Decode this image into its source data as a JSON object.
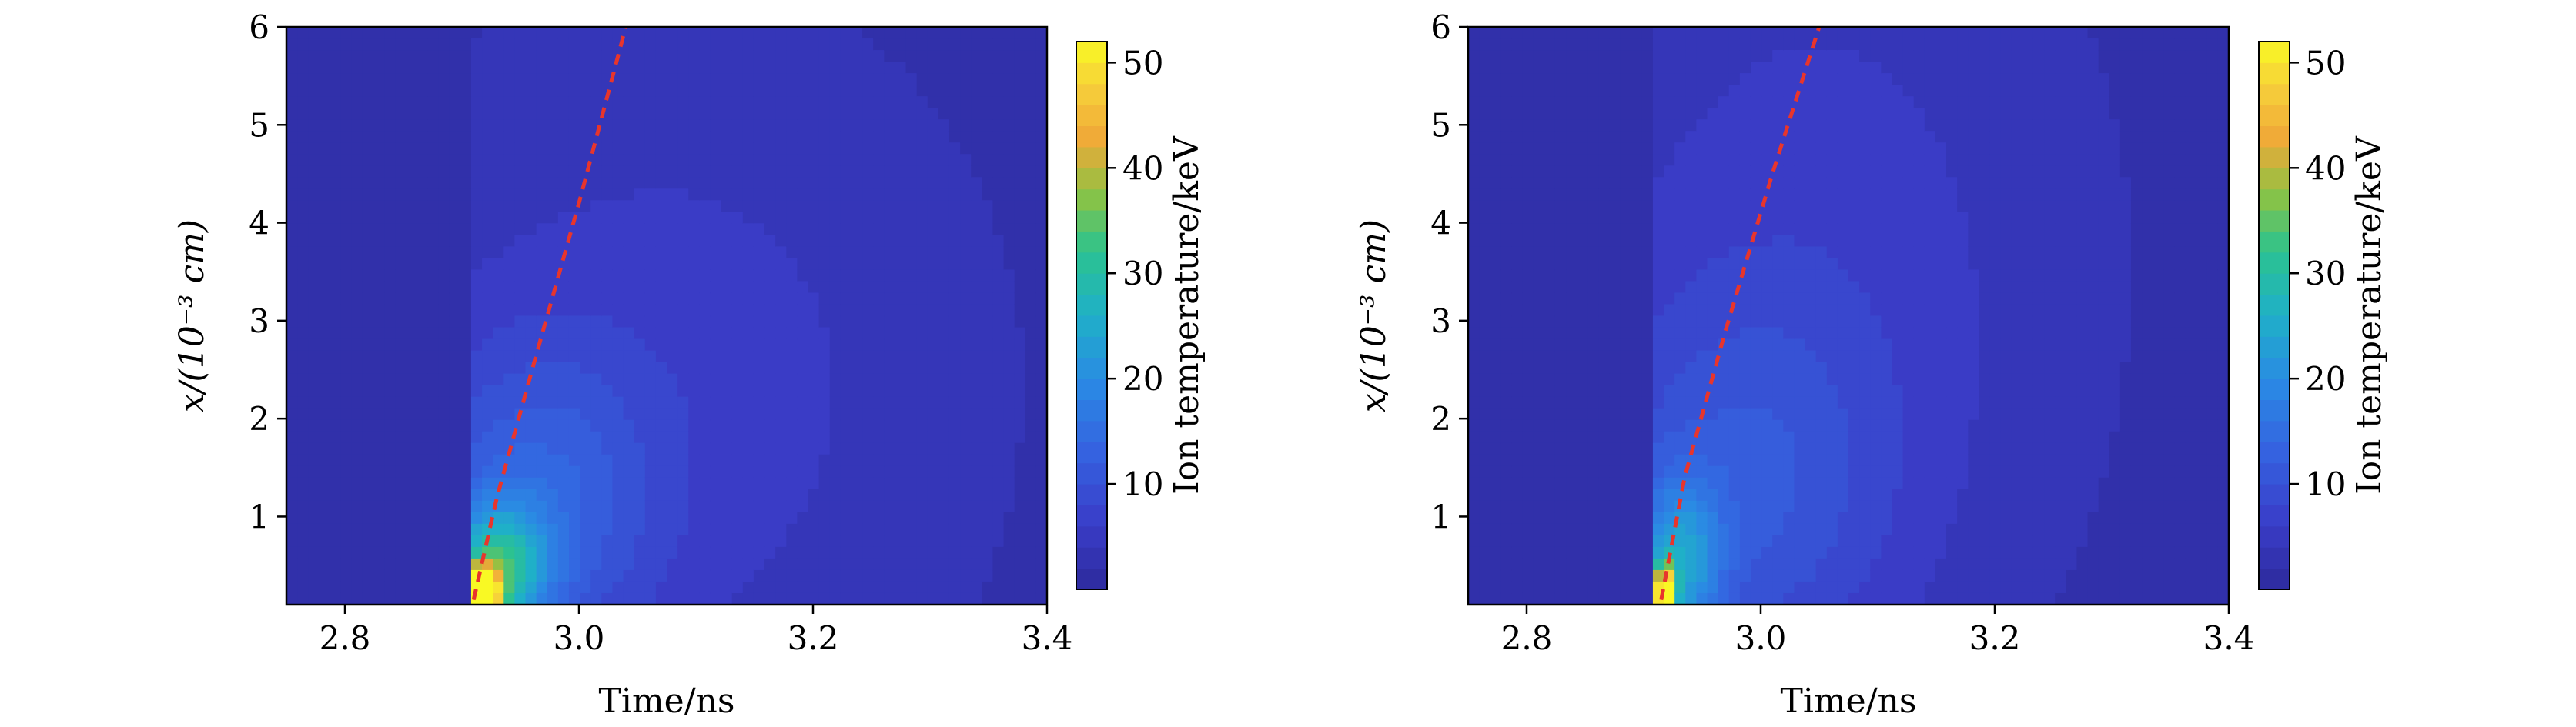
{
  "chart_data": [
    {
      "type": "heatmap",
      "xlabel": "Time/ns",
      "ylabel": "x/(10⁻³ cm)",
      "xlim": [
        2.75,
        3.4
      ],
      "ylim": [
        0.1,
        6
      ],
      "xticks": [
        2.8,
        3.0,
        3.2,
        3.4
      ],
      "xtick_labels": [
        "2.8",
        "3.0",
        "3.2",
        "3.4"
      ],
      "yticks": [
        1,
        2,
        3,
        4,
        5,
        6
      ],
      "ytick_labels": [
        "1",
        "2",
        "3",
        "4",
        "5",
        "6"
      ],
      "colorbar": {
        "label": "Ion temperature/keV",
        "range": [
          0,
          52
        ],
        "ticks": [
          10,
          20,
          30,
          40,
          50
        ],
        "tick_labels": [
          "10",
          "20",
          "30",
          "40",
          "50"
        ],
        "colormap": "viridis-like (dark blue to yellow)"
      },
      "field": {
        "background_keV": 3,
        "shock_start": [
          2.91,
          0.15
        ],
        "features": [
          {
            "t": 2.915,
            "x": 0.2,
            "keV": 50,
            "st": 0.012,
            "sx": 0.18
          },
          {
            "t": 2.93,
            "x": 0.45,
            "keV": 22,
            "st": 0.03,
            "sx": 0.45
          },
          {
            "t": 2.96,
            "x": 1.1,
            "keV": 9,
            "st": 0.07,
            "sx": 1.1
          },
          {
            "t": 3.08,
            "x": 2.3,
            "keV": 4,
            "st": 0.18,
            "sx": 2.6
          }
        ]
      },
      "shock_trajectory": {
        "color": "#e8352c",
        "style": "dashed",
        "t": [
          2.91,
          2.93,
          2.96,
          3.0,
          3.04
        ],
        "x": [
          0.15,
          1.2,
          2.5,
          4.2,
          6.0
        ]
      }
    },
    {
      "type": "heatmap",
      "xlabel": "Time/ns",
      "ylabel": "x/(10⁻³ cm)",
      "xlim": [
        2.75,
        3.4
      ],
      "ylim": [
        0.1,
        6
      ],
      "xticks": [
        2.8,
        3.0,
        3.2,
        3.4
      ],
      "xtick_labels": [
        "2.8",
        "3.0",
        "3.2",
        "3.4"
      ],
      "yticks": [
        1,
        2,
        3,
        4,
        5,
        6
      ],
      "ytick_labels": [
        "1",
        "2",
        "3",
        "4",
        "5",
        "6"
      ],
      "colorbar": {
        "label": "Ion temperature/keV",
        "range": [
          0,
          52
        ],
        "ticks": [
          10,
          20,
          30,
          40,
          50
        ],
        "tick_labels": [
          "10",
          "20",
          "30",
          "40",
          "50"
        ],
        "colormap": "viridis-like (dark blue to yellow)"
      },
      "field": {
        "background_keV": 3,
        "shock_start": [
          2.915,
          0.15
        ],
        "features": [
          {
            "t": 2.918,
            "x": 0.2,
            "keV": 50,
            "st": 0.006,
            "sx": 0.2
          },
          {
            "t": 2.93,
            "x": 0.5,
            "keV": 16,
            "st": 0.025,
            "sx": 0.6
          },
          {
            "t": 2.98,
            "x": 1.2,
            "keV": 7,
            "st": 0.09,
            "sx": 1.4
          },
          {
            "t": 3.05,
            "x": 3.5,
            "keV": 4,
            "st": 0.16,
            "sx": 3.0
          }
        ]
      },
      "shock_trajectory": {
        "color": "#e8352c",
        "style": "dashed",
        "t": [
          2.915,
          2.935,
          2.97,
          3.01,
          3.05
        ],
        "x": [
          0.15,
          1.4,
          2.9,
          4.5,
          6.0
        ]
      }
    }
  ]
}
